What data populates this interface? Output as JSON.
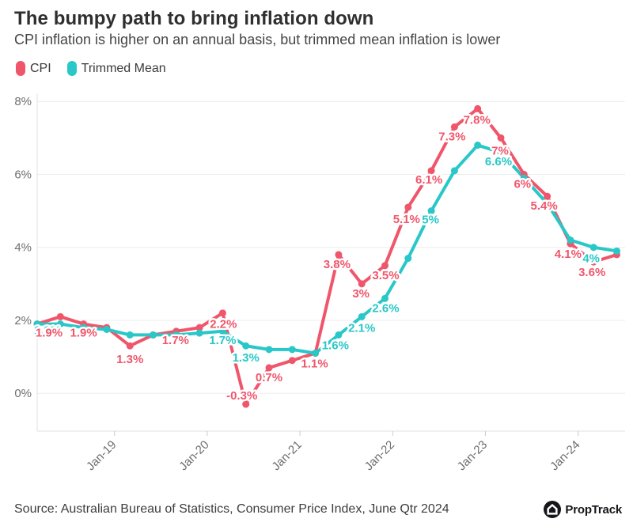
{
  "header": {
    "title": "The bumpy path to bring inflation down",
    "subtitle": "CPI inflation is higher on an annual basis, but trimmed mean inflation is lower"
  },
  "legend": {
    "items": [
      {
        "label": "CPI",
        "color": "#F0566B"
      },
      {
        "label": "Trimmed Mean",
        "color": "#29C7C8"
      }
    ]
  },
  "chart_data": {
    "type": "line",
    "title": "The bumpy path to bring inflation down",
    "unit": "%",
    "x": [
      "Mar-18",
      "Jun-18",
      "Sep-18",
      "Dec-18",
      "Mar-19",
      "Jun-19",
      "Sep-19",
      "Dec-19",
      "Mar-20",
      "Jun-20",
      "Sep-20",
      "Dec-20",
      "Mar-21",
      "Jun-21",
      "Sep-21",
      "Dec-21",
      "Mar-22",
      "Jun-22",
      "Sep-22",
      "Dec-22",
      "Mar-23",
      "Jun-23",
      "Sep-23",
      "Dec-23",
      "Mar-24",
      "Jun-24"
    ],
    "x_axis_ticks": [
      "Jan-19",
      "Jan-20",
      "Jan-21",
      "Jan-22",
      "Jan-23",
      "Jan-24"
    ],
    "y_axis": {
      "ticks": [
        0,
        2,
        4,
        6,
        8
      ],
      "tick_labels": [
        "0%",
        "2%",
        "4%",
        "6%",
        "8%"
      ],
      "range": [
        -1.1,
        8.4
      ]
    },
    "grid": "horizontal",
    "legend_position": "top-left",
    "series": [
      {
        "name": "CPI",
        "color": "#F0566B",
        "values": [
          1.9,
          2.1,
          1.9,
          1.8,
          1.3,
          1.6,
          1.7,
          1.8,
          2.2,
          -0.3,
          0.7,
          0.9,
          1.1,
          3.8,
          3.0,
          3.5,
          5.1,
          6.1,
          7.3,
          7.8,
          7.0,
          6.0,
          5.4,
          4.1,
          3.6,
          3.8
        ],
        "point_labels": [
          {
            "index": 0,
            "text": "1.9%",
            "dx": 15,
            "dy": 16
          },
          {
            "index": 2,
            "text": "1.9%",
            "dx": 0,
            "dy": 16
          },
          {
            "index": 4,
            "text": "1.3%",
            "dx": 0,
            "dy": 22
          },
          {
            "index": 6,
            "text": "1.7%",
            "dx": -1,
            "dy": 16
          },
          {
            "index": 8,
            "text": "2.2%",
            "dx": 1,
            "dy": 19
          },
          {
            "index": 9,
            "text": "-0.3%",
            "dx": -5,
            "dy": -6
          },
          {
            "index": 10,
            "text": "0.7%",
            "dx": 0,
            "dy": 17
          },
          {
            "index": 12,
            "text": "1.1%",
            "dx": -1,
            "dy": 18
          },
          {
            "index": 13,
            "text": "3.8%",
            "dx": -2,
            "dy": 17
          },
          {
            "index": 14,
            "text": "3%",
            "dx": -1,
            "dy": 17
          },
          {
            "index": 15,
            "text": "3.5%",
            "dx": 1,
            "dy": 17
          },
          {
            "index": 16,
            "text": "5.1%",
            "dx": -2,
            "dy": 20
          },
          {
            "index": 17,
            "text": "6.1%",
            "dx": -3,
            "dy": 16
          },
          {
            "index": 18,
            "text": "7.3%",
            "dx": -3,
            "dy": 17
          },
          {
            "index": 19,
            "text": "7.8%",
            "dx": -1,
            "dy": 19
          },
          {
            "index": 20,
            "text": "7%",
            "dx": -1,
            "dy": 21
          },
          {
            "index": 21,
            "text": "6%",
            "dx": -2,
            "dy": 17
          },
          {
            "index": 22,
            "text": "5.4%",
            "dx": -4,
            "dy": 17
          },
          {
            "index": 23,
            "text": "4.1%",
            "dx": -3,
            "dy": 18
          },
          {
            "index": 24,
            "text": "3.6%",
            "dx": -2,
            "dy": 18
          }
        ]
      },
      {
        "name": "Trimmed Mean",
        "color": "#29C7C8",
        "values": [
          1.9,
          1.9,
          1.8,
          1.75,
          1.6,
          1.6,
          1.6,
          1.65,
          1.7,
          1.3,
          1.2,
          1.2,
          1.1,
          1.6,
          2.1,
          2.6,
          3.7,
          5.0,
          6.1,
          6.8,
          6.6,
          5.9,
          5.2,
          4.2,
          4.0,
          3.9
        ],
        "point_labels": [
          {
            "index": 0,
            "text": "1.9%",
            "dx": 13,
            "dy": 13
          },
          {
            "index": 8,
            "text": "1.7%",
            "dx": 0,
            "dy": 16
          },
          {
            "index": 9,
            "text": "1.3%",
            "dx": 0,
            "dy": 20
          },
          {
            "index": 13,
            "text": "1.6%",
            "dx": -4,
            "dy": 18
          },
          {
            "index": 14,
            "text": "2.1%",
            "dx": 0,
            "dy": 19
          },
          {
            "index": 15,
            "text": "2.6%",
            "dx": 1,
            "dy": 17
          },
          {
            "index": 17,
            "text": "5%",
            "dx": -1,
            "dy": 16
          },
          {
            "index": 20,
            "text": "6.6%",
            "dx": -3,
            "dy": 16
          },
          {
            "index": 24,
            "text": "4%",
            "dx": -3,
            "dy": 19
          }
        ]
      }
    ]
  },
  "footer": {
    "source": "Source: Australian Bureau of Statistics, Consumer Price Index, June Qtr 2024",
    "brand": "PropTrack"
  }
}
